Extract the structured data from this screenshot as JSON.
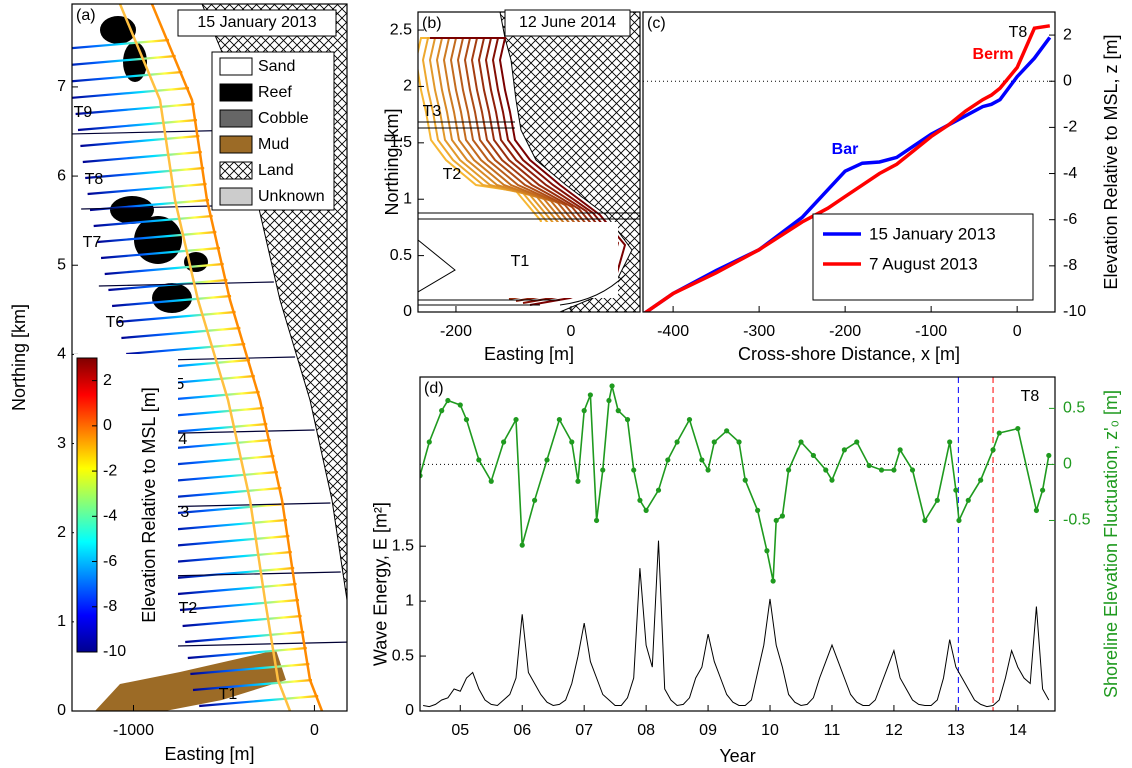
{
  "chart_data": [
    {
      "type": "map",
      "panel_label": "(a)",
      "title": "15 January 2013",
      "xlabel": "Easting [m]",
      "ylabel": "Northing [km]",
      "xlim": [
        -1340,
        180
      ],
      "ylim": [
        0,
        7.93
      ],
      "xticks": [
        -1000,
        0
      ],
      "yticks": [
        0,
        1,
        2,
        3,
        4,
        5,
        6,
        7
      ],
      "legend": [
        {
          "name": "Sand",
          "color": "#ffffff"
        },
        {
          "name": "Reef",
          "color": "#000000"
        },
        {
          "name": "Cobble",
          "color": "#666666"
        },
        {
          "name": "Mud",
          "color": "#9c6b26"
        },
        {
          "name": "Land",
          "color": "hatch"
        },
        {
          "name": "Unknown",
          "color": "#cccccc"
        }
      ],
      "colorbar": {
        "label": "Elevation Relative to MSL [m]",
        "colormap": "jet",
        "clim": [
          -10,
          3
        ],
        "ticks": [
          -10,
          -8,
          -6,
          -4,
          -2,
          0,
          2
        ]
      },
      "transect_labels": [
        "T1",
        "T2",
        "T3",
        "T4",
        "T5",
        "T6",
        "T7",
        "T8",
        "T9"
      ]
    },
    {
      "type": "map",
      "panel_label": "(b)",
      "title": "12 June 2014",
      "xlabel": "Easting [m]",
      "ylabel": "Northing [km]",
      "xlim": [
        -266,
        120
      ],
      "ylim": [
        0,
        2.66
      ],
      "xticks": [
        -200,
        0
      ],
      "yticks": [
        0,
        0.5,
        1,
        1.5,
        2,
        2.5
      ],
      "transect_labels": [
        "T1",
        "T2",
        "T3"
      ]
    },
    {
      "type": "line",
      "panel_label": "(c)",
      "xlabel": "Cross-shore Distance, x [m]",
      "ylabel": "Elevation Relative to MSL, z [m]",
      "xlim": [
        -435,
        44
      ],
      "ylim": [
        -10,
        3
      ],
      "xticks": [
        -400,
        -300,
        -200,
        -100,
        0
      ],
      "yticks": [
        -10,
        -8,
        -6,
        -4,
        -2,
        0,
        2
      ],
      "zero_line": true,
      "legend_corner": "lower right",
      "x": [
        -435,
        -400,
        -350,
        -300,
        -250,
        -220,
        -200,
        -180,
        -160,
        -140,
        -120,
        -100,
        -80,
        -60,
        -40,
        -30,
        -20,
        0,
        20,
        38
      ],
      "series": [
        {
          "name": "15 January 2013",
          "color": "#0000ff",
          "values": [
            -10.1,
            -9.2,
            -8.2,
            -7.3,
            -5.9,
            -4.7,
            -3.9,
            -3.55,
            -3.5,
            -3.3,
            -2.8,
            -2.3,
            -1.9,
            -1.5,
            -1.1,
            -1.0,
            -0.8,
            0.2,
            1.0,
            1.9
          ]
        },
        {
          "name": "7 August 2013",
          "color": "#ff0000",
          "values": [
            -10.1,
            -9.2,
            -8.3,
            -7.3,
            -6.1,
            -5.5,
            -5.0,
            -4.5,
            -4.0,
            -3.6,
            -3.0,
            -2.4,
            -1.9,
            -1.3,
            -0.8,
            -0.6,
            -0.3,
            0.6,
            2.3,
            2.4
          ]
        }
      ],
      "annotations": [
        {
          "text": "Bar",
          "color": "#0000ff"
        },
        {
          "text": "Berm",
          "color": "#ff0000"
        },
        {
          "text": "T8",
          "color": "#000000"
        }
      ]
    },
    {
      "type": "line",
      "panel_label": "(d)",
      "xlabel": "Year",
      "ylabel": "Wave Energy, E [m²]",
      "y2label": "Shoreline Elevation Fluctuation, z'₀ [m]",
      "xlim": [
        2004.35,
        2014.6
      ],
      "ylim": [
        0,
        3.04
      ],
      "y2lim": [
        -2.2,
        0.78
      ],
      "xticks": [
        {
          "value": 2005,
          "label": "05"
        },
        {
          "value": 2006,
          "label": "06"
        },
        {
          "value": 2007,
          "label": "07"
        },
        {
          "value": 2008,
          "label": "08"
        },
        {
          "value": 2009,
          "label": "09"
        },
        {
          "value": 2010,
          "label": "10"
        },
        {
          "value": 2011,
          "label": "11"
        },
        {
          "value": 2012,
          "label": "12"
        },
        {
          "value": 2013,
          "label": "13"
        },
        {
          "value": 2014,
          "label": "14"
        }
      ],
      "yticks": [
        0,
        0.5,
        1,
        1.5
      ],
      "y2ticks": [
        -0.5,
        0,
        0.5
      ],
      "zero_line": true,
      "date_markers": [
        {
          "x": 2013.04,
          "color": "#0000ff"
        },
        {
          "x": 2013.6,
          "color": "#ff0000"
        }
      ],
      "series": [
        {
          "color": "#000000",
          "x": [
            2004.4,
            2004.5,
            2004.6,
            2004.7,
            2004.8,
            2004.9,
            2005.0,
            2005.1,
            2005.2,
            2005.3,
            2005.4,
            2005.5,
            2005.6,
            2005.7,
            2005.8,
            2005.9,
            2006.0,
            2006.1,
            2006.2,
            2006.3,
            2006.4,
            2006.5,
            2006.6,
            2006.7,
            2006.8,
            2006.9,
            2007.0,
            2007.1,
            2007.2,
            2007.3,
            2007.4,
            2007.5,
            2007.6,
            2007.7,
            2007.8,
            2007.9,
            2008.0,
            2008.1,
            2008.2,
            2008.3,
            2008.4,
            2008.5,
            2008.6,
            2008.7,
            2008.8,
            2008.9,
            2009.0,
            2009.1,
            2009.2,
            2009.3,
            2009.4,
            2009.5,
            2009.6,
            2009.7,
            2009.8,
            2009.9,
            2010.0,
            2010.1,
            2010.2,
            2010.3,
            2010.4,
            2010.5,
            2010.6,
            2010.7,
            2010.8,
            2010.9,
            2011.0,
            2011.1,
            2011.2,
            2011.3,
            2011.4,
            2011.5,
            2011.6,
            2011.7,
            2011.8,
            2011.9,
            2012.0,
            2012.1,
            2012.2,
            2012.3,
            2012.4,
            2012.5,
            2012.6,
            2012.7,
            2012.8,
            2012.9,
            2013.0,
            2013.1,
            2013.2,
            2013.3,
            2013.4,
            2013.5,
            2013.6,
            2013.7,
            2013.8,
            2013.9,
            2014.0,
            2014.1,
            2014.2,
            2014.3,
            2014.4,
            2014.5
          ],
          "values": [
            0.05,
            0.04,
            0.06,
            0.1,
            0.12,
            0.2,
            0.18,
            0.3,
            0.35,
            0.2,
            0.1,
            0.06,
            0.05,
            0.1,
            0.15,
            0.3,
            0.88,
            0.35,
            0.25,
            0.15,
            0.08,
            0.05,
            0.06,
            0.1,
            0.25,
            0.5,
            0.8,
            0.45,
            0.3,
            0.15,
            0.1,
            0.05,
            0.05,
            0.12,
            0.3,
            1.3,
            0.6,
            0.4,
            1.55,
            0.2,
            0.1,
            0.05,
            0.06,
            0.12,
            0.3,
            0.4,
            0.7,
            0.45,
            0.3,
            0.15,
            0.08,
            0.05,
            0.05,
            0.1,
            0.35,
            0.6,
            1.02,
            0.6,
            0.4,
            0.15,
            0.08,
            0.05,
            0.06,
            0.12,
            0.3,
            0.45,
            0.6,
            0.45,
            0.3,
            0.15,
            0.08,
            0.05,
            0.05,
            0.1,
            0.25,
            0.4,
            0.55,
            0.3,
            0.2,
            0.1,
            0.06,
            0.05,
            0.05,
            0.1,
            0.3,
            0.65,
            0.4,
            0.3,
            0.2,
            0.1,
            0.06,
            0.04,
            0.05,
            0.1,
            0.3,
            0.55,
            0.4,
            0.3,
            0.25,
            0.95,
            0.2,
            0.1
          ]
        },
        {
          "color": "#1f9a1f",
          "axis": "y2",
          "x": [
            2004.35,
            2004.5,
            2004.7,
            2004.8,
            2005.0,
            2005.1,
            2005.3,
            2005.5,
            2005.7,
            2005.9,
            2006.0,
            2006.2,
            2006.4,
            2006.6,
            2006.8,
            2006.9,
            2007.0,
            2007.1,
            2007.2,
            2007.3,
            2007.4,
            2007.45,
            2007.55,
            2007.7,
            2007.8,
            2007.9,
            2008.0,
            2008.2,
            2008.35,
            2008.5,
            2008.7,
            2008.9,
            2009.0,
            2009.1,
            2009.3,
            2009.5,
            2009.6,
            2009.8,
            2009.95,
            2010.05,
            2010.1,
            2010.2,
            2010.3,
            2010.5,
            2010.7,
            2010.9,
            2011.0,
            2011.2,
            2011.4,
            2011.6,
            2011.8,
            2012.0,
            2012.1,
            2012.3,
            2012.5,
            2012.7,
            2012.9,
            2013.0,
            2013.05,
            2013.2,
            2013.4,
            2013.6,
            2013.7,
            2014.0,
            2014.3,
            2014.4,
            2014.5
          ],
          "values": [
            -0.1,
            0.2,
            0.48,
            0.57,
            0.53,
            0.4,
            0.04,
            -0.15,
            0.2,
            0.4,
            -0.72,
            -0.32,
            0.04,
            0.4,
            0.2,
            -0.15,
            0.48,
            0.62,
            -0.5,
            -0.05,
            0.57,
            0.7,
            0.48,
            0.4,
            -0.05,
            -0.32,
            -0.41,
            -0.23,
            0.04,
            0.2,
            0.4,
            0.04,
            -0.05,
            0.2,
            0.3,
            0.2,
            -0.14,
            -0.41,
            -0.77,
            -1.04,
            -0.5,
            -0.46,
            -0.05,
            0.2,
            0.08,
            -0.05,
            -0.14,
            0.13,
            0.2,
            -0.01,
            -0.05,
            -0.05,
            0.13,
            -0.05,
            -0.5,
            -0.32,
            0.2,
            -0.23,
            -0.5,
            -0.32,
            -0.14,
            0.13,
            0.28,
            0.32,
            -0.41,
            -0.23,
            0.08
          ]
        }
      ],
      "annotations": [
        {
          "text": "T8",
          "color": "#000000"
        }
      ]
    }
  ]
}
